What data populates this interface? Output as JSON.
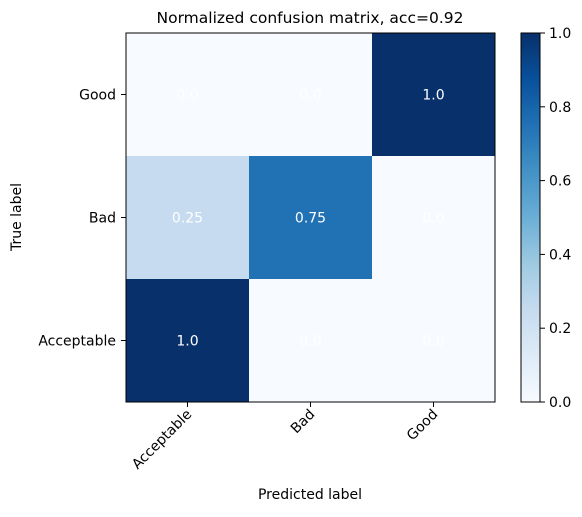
{
  "chart_data": {
    "type": "heatmap",
    "title": "Normalized confusion matrix, acc=0.92",
    "xlabel": "Predicted label",
    "ylabel": "True label",
    "x_categories": [
      "Acceptable",
      "Bad",
      "Good"
    ],
    "y_categories": [
      "Good",
      "Bad",
      "Acceptable"
    ],
    "values": [
      [
        0.0,
        0.0,
        1.0
      ],
      [
        0.25,
        0.75,
        0.0
      ],
      [
        1.0,
        0.0,
        0.0
      ]
    ],
    "cell_labels": [
      [
        "0.0",
        "0.0",
        "1.0"
      ],
      [
        "0.25",
        "0.75",
        "0.0"
      ],
      [
        "1.0",
        "0.0",
        "0.0"
      ]
    ],
    "colormap": "Blues",
    "colormap_stops": [
      "#f7fbff",
      "#deebf7",
      "#c6dbef",
      "#9ecae1",
      "#6baed6",
      "#4292c6",
      "#2171b5",
      "#08519c",
      "#08306b"
    ],
    "colorbar": {
      "range": [
        0.0,
        1.0
      ],
      "ticks": [
        "0.0",
        "0.2",
        "0.4",
        "0.6",
        "0.8",
        "1.0"
      ],
      "tick_values": [
        0.0,
        0.2,
        0.4,
        0.6,
        0.8,
        1.0
      ]
    },
    "cell_text_color": "#ffffff"
  }
}
